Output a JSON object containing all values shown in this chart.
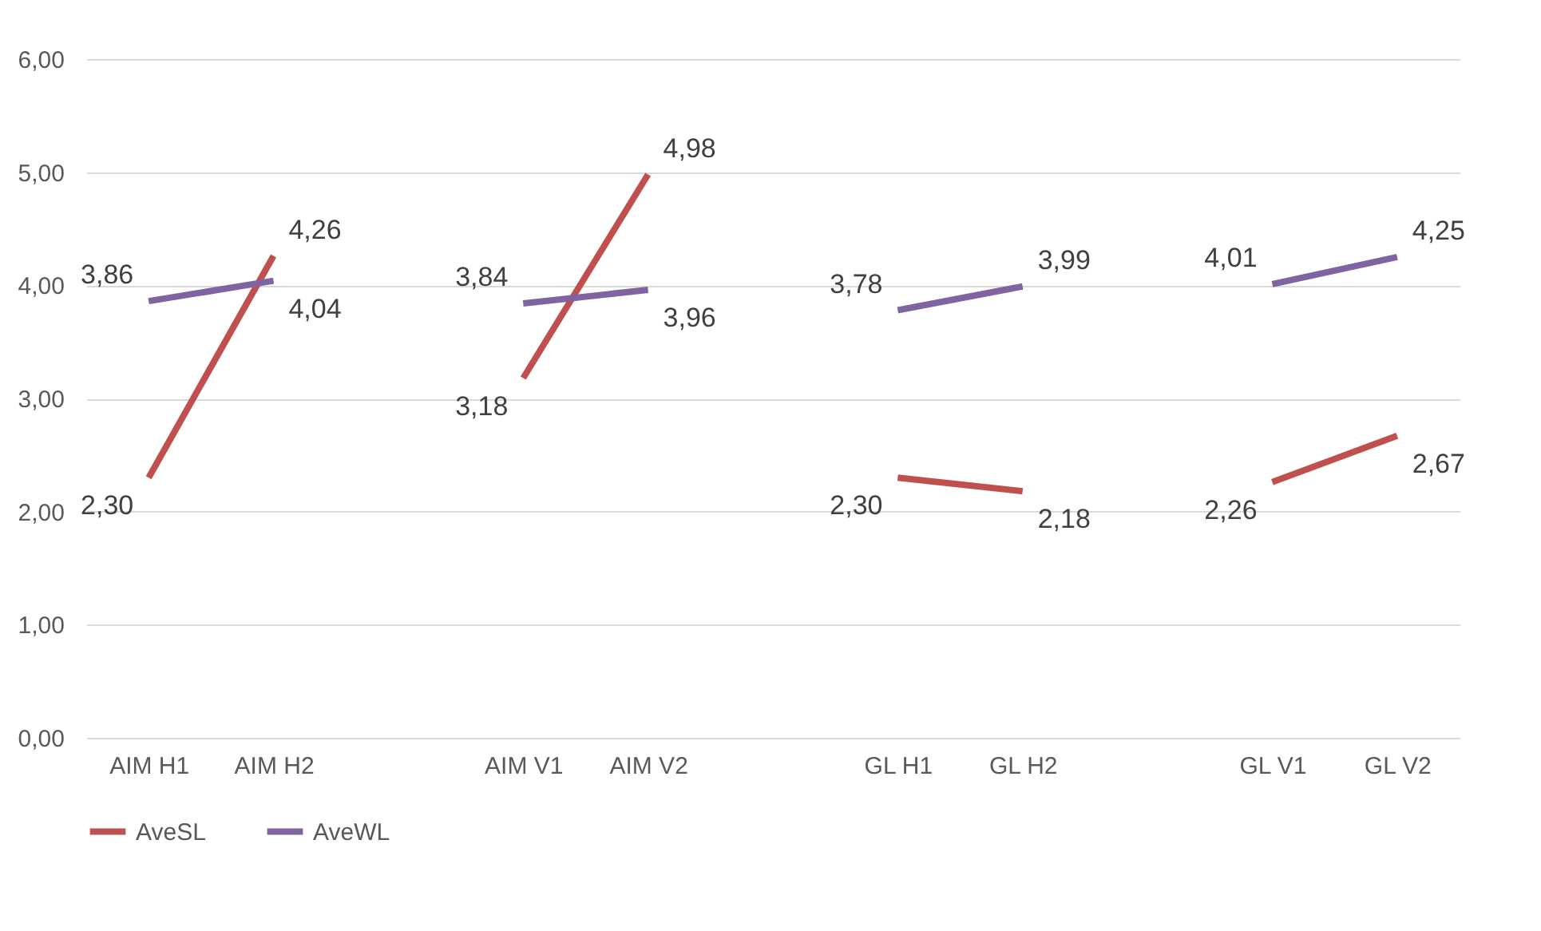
{
  "chart_data": {
    "type": "line",
    "categories": [
      "AIM H1",
      "AIM H2",
      null,
      "AIM V1",
      "AIM V2",
      null,
      "GL H1",
      "GL H2",
      null,
      "GL V1",
      "GL V2"
    ],
    "series": [
      {
        "name": "AveSL",
        "color": "#c0504d",
        "values": [
          2.3,
          4.26,
          null,
          3.18,
          4.98,
          null,
          2.3,
          2.18,
          null,
          2.26,
          2.67
        ],
        "value_labels": [
          "2,30",
          "4,26",
          null,
          "3,18",
          "4,98",
          null,
          "2,30",
          "2,18",
          null,
          "2,26",
          "2,67"
        ]
      },
      {
        "name": "AveWL",
        "color": "#8064a2",
        "values": [
          3.86,
          4.04,
          null,
          3.84,
          3.96,
          null,
          3.78,
          3.99,
          null,
          4.01,
          4.25
        ],
        "value_labels": [
          "3,86",
          "4,04",
          null,
          "3,84",
          "3,96",
          null,
          "3,78",
          "3,99",
          null,
          "4,01",
          "4,25"
        ]
      }
    ],
    "ylim": [
      0,
      6
    ],
    "yticks": [
      {
        "value": 0,
        "label": "0,00"
      },
      {
        "value": 1,
        "label": "1,00"
      },
      {
        "value": 2,
        "label": "2,00"
      },
      {
        "value": 3,
        "label": "3,00"
      },
      {
        "value": 4,
        "label": "4,00"
      },
      {
        "value": 5,
        "label": "5,00"
      },
      {
        "value": 6,
        "label": "6,00"
      }
    ],
    "grid": "y",
    "legend": "bottom",
    "marker": "none",
    "line_style": "solid"
  }
}
